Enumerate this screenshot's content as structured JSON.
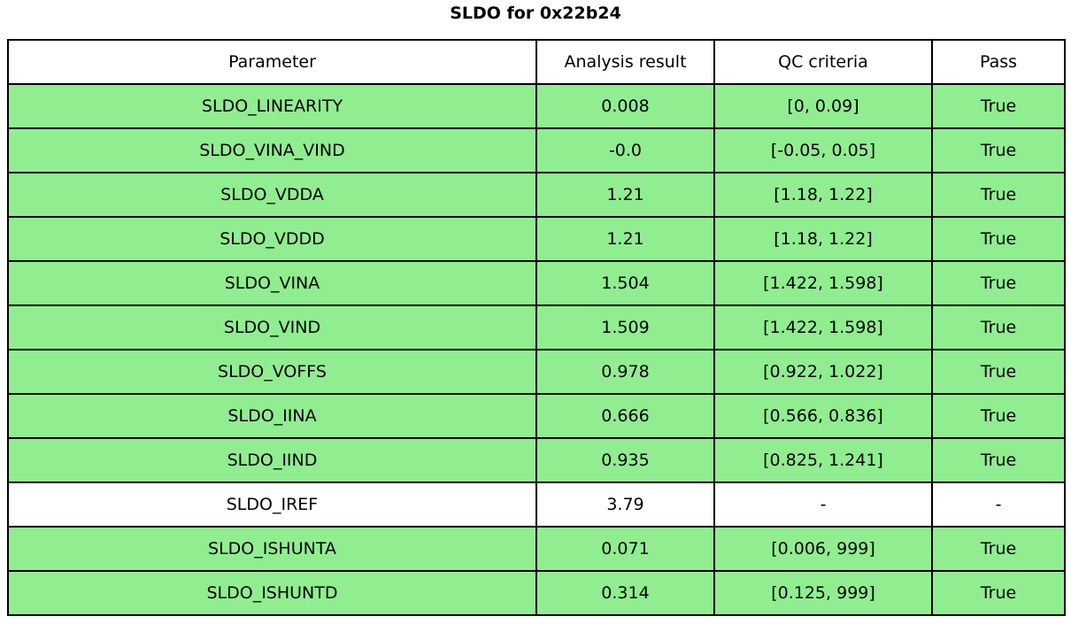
{
  "title": "SLDO for 0x22b24",
  "colors": {
    "pass_green": "#90EE90",
    "plain_white": "#FFFFFF",
    "border_black": "#000000"
  },
  "chart_data": {
    "type": "table",
    "title": "SLDO for 0x22b24",
    "columns": [
      "Parameter",
      "Analysis result",
      "QC criteria",
      "Pass"
    ],
    "rows": [
      {
        "parameter": "SLDO_LINEARITY",
        "analysis_result": "0.008",
        "qc_criteria": "[0, 0.09]",
        "pass": "True",
        "highlight": true
      },
      {
        "parameter": "SLDO_VINA_VIND",
        "analysis_result": "-0.0",
        "qc_criteria": "[-0.05, 0.05]",
        "pass": "True",
        "highlight": true
      },
      {
        "parameter": "SLDO_VDDA",
        "analysis_result": "1.21",
        "qc_criteria": "[1.18, 1.22]",
        "pass": "True",
        "highlight": true
      },
      {
        "parameter": "SLDO_VDDD",
        "analysis_result": "1.21",
        "qc_criteria": "[1.18, 1.22]",
        "pass": "True",
        "highlight": true
      },
      {
        "parameter": "SLDO_VINA",
        "analysis_result": "1.504",
        "qc_criteria": "[1.422, 1.598]",
        "pass": "True",
        "highlight": true
      },
      {
        "parameter": "SLDO_VIND",
        "analysis_result": "1.509",
        "qc_criteria": "[1.422, 1.598]",
        "pass": "True",
        "highlight": true
      },
      {
        "parameter": "SLDO_VOFFS",
        "analysis_result": "0.978",
        "qc_criteria": "[0.922, 1.022]",
        "pass": "True",
        "highlight": true
      },
      {
        "parameter": "SLDO_IINA",
        "analysis_result": "0.666",
        "qc_criteria": "[0.566, 0.836]",
        "pass": "True",
        "highlight": true
      },
      {
        "parameter": "SLDO_IIND",
        "analysis_result": "0.935",
        "qc_criteria": "[0.825, 1.241]",
        "pass": "True",
        "highlight": true
      },
      {
        "parameter": "SLDO_IREF",
        "analysis_result": "3.79",
        "qc_criteria": "-",
        "pass": "-",
        "highlight": false
      },
      {
        "parameter": "SLDO_ISHUNTA",
        "analysis_result": "0.071",
        "qc_criteria": "[0.006, 999]",
        "pass": "True",
        "highlight": true
      },
      {
        "parameter": "SLDO_ISHUNTD",
        "analysis_result": "0.314",
        "qc_criteria": "[0.125, 999]",
        "pass": "True",
        "highlight": true
      }
    ]
  }
}
